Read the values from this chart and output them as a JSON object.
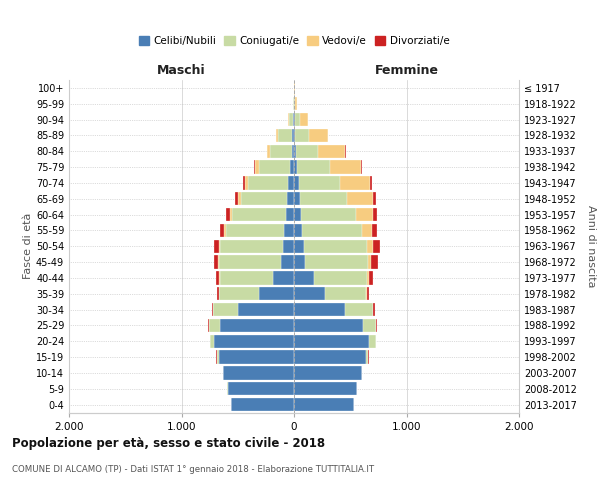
{
  "age_groups": [
    "0-4",
    "5-9",
    "10-14",
    "15-19",
    "20-24",
    "25-29",
    "30-34",
    "35-39",
    "40-44",
    "45-49",
    "50-54",
    "55-59",
    "60-64",
    "65-69",
    "70-74",
    "75-79",
    "80-84",
    "85-89",
    "90-94",
    "95-99",
    "100+"
  ],
  "birth_years": [
    "2013-2017",
    "2008-2012",
    "2003-2007",
    "1998-2002",
    "1993-1997",
    "1988-1992",
    "1983-1987",
    "1978-1982",
    "1973-1977",
    "1968-1972",
    "1963-1967",
    "1958-1962",
    "1953-1957",
    "1948-1952",
    "1943-1947",
    "1938-1942",
    "1933-1937",
    "1928-1932",
    "1923-1927",
    "1918-1922",
    "≤ 1917"
  ],
  "male": {
    "celibi": [
      560,
      590,
      630,
      670,
      710,
      660,
      500,
      310,
      190,
      115,
      100,
      85,
      75,
      65,
      50,
      35,
      20,
      15,
      8,
      3,
      2
    ],
    "coniugati": [
      2,
      3,
      5,
      18,
      38,
      95,
      220,
      355,
      470,
      550,
      555,
      520,
      480,
      410,
      360,
      280,
      195,
      125,
      38,
      8,
      2
    ],
    "vedovi": [
      0,
      0,
      0,
      0,
      0,
      1,
      2,
      3,
      5,
      8,
      10,
      14,
      18,
      24,
      28,
      28,
      22,
      18,
      8,
      2,
      0
    ],
    "divorziati": [
      0,
      0,
      0,
      1,
      2,
      5,
      10,
      18,
      28,
      42,
      48,
      42,
      32,
      22,
      18,
      12,
      6,
      4,
      1,
      0,
      0
    ]
  },
  "female": {
    "nubili": [
      530,
      560,
      600,
      640,
      670,
      610,
      455,
      275,
      175,
      100,
      90,
      72,
      65,
      55,
      42,
      28,
      16,
      10,
      6,
      3,
      2
    ],
    "coniugate": [
      2,
      3,
      5,
      22,
      55,
      120,
      245,
      365,
      475,
      555,
      560,
      530,
      490,
      420,
      365,
      290,
      195,
      120,
      45,
      10,
      2
    ],
    "vedove": [
      0,
      0,
      0,
      0,
      1,
      2,
      4,
      8,
      14,
      28,
      48,
      88,
      145,
      225,
      268,
      278,
      242,
      170,
      75,
      14,
      2
    ],
    "divorziate": [
      0,
      0,
      0,
      1,
      2,
      5,
      12,
      22,
      38,
      62,
      62,
      52,
      42,
      28,
      20,
      12,
      8,
      6,
      2,
      0,
      0
    ]
  },
  "colors": {
    "celibi": "#4a7eb5",
    "coniugati": "#c8dba4",
    "vedovi": "#f7cc80",
    "divorziati": "#cc2222"
  },
  "xlim": 2000,
  "title": "Popolazione per età, sesso e stato civile - 2018",
  "subtitle": "COMUNE DI ALCAMO (TP) - Dati ISTAT 1° gennaio 2018 - Elaborazione TUTTITALIA.IT",
  "ylabel_left": "Fasce di età",
  "ylabel_right": "Anni di nascita",
  "xlabel_left": "Maschi",
  "xlabel_right": "Femmine"
}
